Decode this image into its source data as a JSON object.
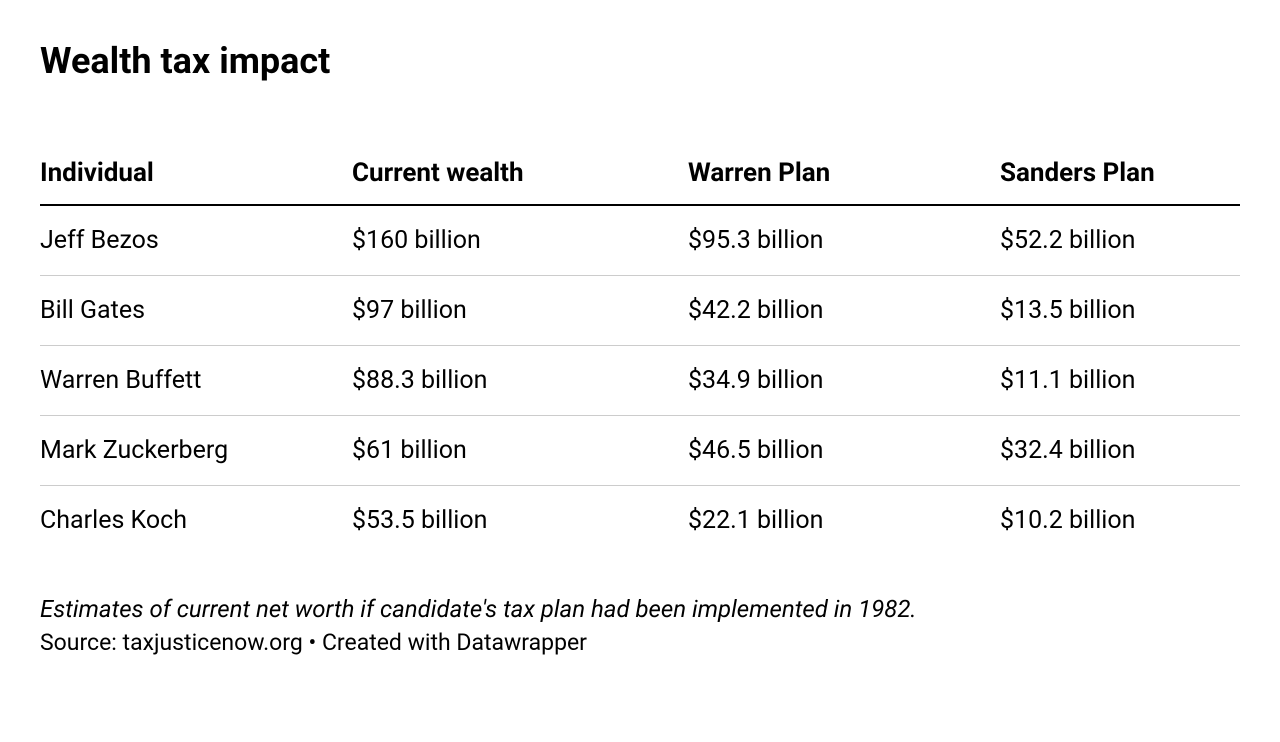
{
  "title": "Wealth tax impact",
  "table": {
    "type": "table",
    "columns": [
      {
        "label": "Individual",
        "align": "left"
      },
      {
        "label": "Current wealth",
        "align": "left"
      },
      {
        "label": "Warren Plan",
        "align": "left"
      },
      {
        "label": "Sanders Plan",
        "align": "left"
      }
    ],
    "rows": [
      {
        "cells": [
          "Jeff Bezos",
          "$160 billion",
          "$95.3 billion",
          "$52.2 billion"
        ]
      },
      {
        "cells": [
          "Bill Gates",
          "$97 billion",
          "$42.2 billion",
          "$13.5 billion"
        ]
      },
      {
        "cells": [
          "Warren Buffett",
          "$88.3 billion",
          "$34.9 billion",
          "$11.1 billion"
        ]
      },
      {
        "cells": [
          "Mark Zuckerberg",
          "$61 billion",
          "$46.5 billion",
          "$32.4 billion"
        ]
      },
      {
        "cells": [
          "Charles Koch",
          "$53.5 billion",
          "$22.1 billion",
          "$10.2 billion"
        ]
      }
    ],
    "header_fontsize": 26,
    "cell_fontsize": 25,
    "header_border_color": "#000000",
    "row_border_color": "#cccccc",
    "background_color": "#ffffff",
    "text_color": "#000000"
  },
  "footnote": "Estimates of current net worth if candidate's tax plan had been implemented in 1982.",
  "source": "Source: taxjusticenow.org • Created with Datawrapper"
}
